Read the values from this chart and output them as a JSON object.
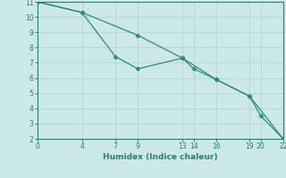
{
  "line1_x": [
    0,
    4,
    7,
    9,
    13,
    14,
    16,
    19,
    20,
    22
  ],
  "line1_y": [
    11,
    10.3,
    7.4,
    6.6,
    7.3,
    6.6,
    5.9,
    4.8,
    3.5,
    2.0
  ],
  "line2_x": [
    0,
    4,
    9,
    13,
    16,
    19,
    22
  ],
  "line2_y": [
    11,
    10.3,
    8.8,
    7.3,
    5.9,
    4.8,
    2.0
  ],
  "color": "#2e8b7a",
  "bg_color": "#cce8e8",
  "grid_color": "#b8d8d8",
  "xlabel": "Humidex (Indice chaleur)",
  "xticks": [
    0,
    4,
    7,
    9,
    13,
    14,
    16,
    19,
    20,
    22
  ],
  "xtick_labels": [
    "0",
    "4",
    "7",
    "9",
    "13",
    "14",
    "16",
    "19",
    "20",
    "22"
  ],
  "yticks": [
    2,
    3,
    4,
    5,
    6,
    7,
    8,
    9,
    10,
    11
  ],
  "xlim": [
    0,
    22
  ],
  "ylim": [
    2,
    11
  ],
  "font_color": "#2e7d6e"
}
